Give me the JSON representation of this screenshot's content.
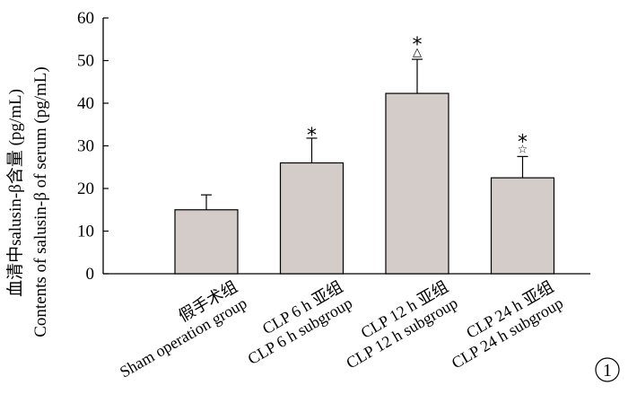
{
  "chart_data": {
    "type": "bar",
    "ylabel_cn": "血清中salusin-β含量 (pg/mL)",
    "ylabel_en": "Contents of salusin-β of serum (pg/mL)",
    "ylim": [
      0,
      60
    ],
    "yticks": [
      "0",
      "10",
      "20",
      "30",
      "40",
      "50",
      "60"
    ],
    "categories": [
      {
        "cn": "假手术组",
        "en": "Sham operation group"
      },
      {
        "cn": "CLP 6 h 亚组",
        "en": "CLP 6 h subgroup"
      },
      {
        "cn": "CLP 12 h 亚组",
        "en": "CLP 12 h subgroup"
      },
      {
        "cn": "CLP 24 h 亚组",
        "en": "CLP 24 h subgroup"
      }
    ],
    "values": [
      15,
      26,
      42.3,
      22.5
    ],
    "errors": [
      3.5,
      5.8,
      8,
      5
    ],
    "significance": [
      [],
      [
        "*"
      ],
      [
        "*",
        "△"
      ],
      [
        "*",
        "☆"
      ]
    ],
    "bar_color": "#d3ccc9",
    "grid": false,
    "panel_label": "1"
  }
}
